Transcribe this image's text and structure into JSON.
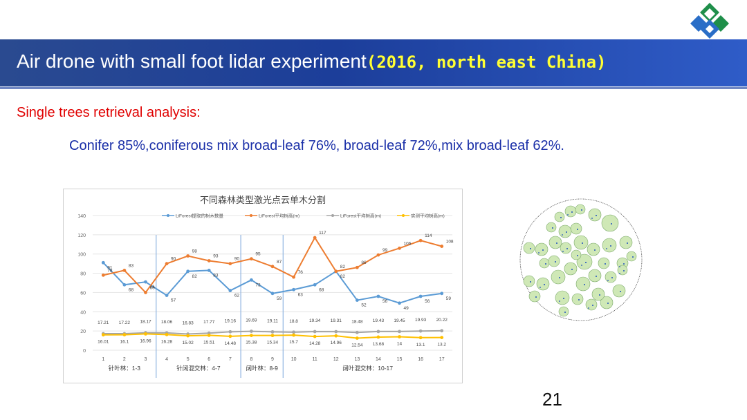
{
  "slide": {
    "title_main": "Air drone with small foot lidar experiment",
    "title_accent": "(2016, north east China)",
    "subheading": "Single trees retrieval analysis:",
    "detail": "Conifer  85%,coniferous mix broad-leaf 76%, broad-leaf 72%,mix broad-leaf 62%.",
    "page_number": "21"
  },
  "colors": {
    "title_bg": "#1c3e9a",
    "accent": "#ffff33",
    "subhead": "#e00000",
    "detail": "#1a2fa8"
  },
  "chart_data": {
    "type": "line",
    "title": "不同森林类型激光点云单木分割",
    "x": [
      1,
      2,
      3,
      4,
      5,
      6,
      7,
      8,
      9,
      10,
      11,
      12,
      13,
      14,
      15,
      16,
      17
    ],
    "ylim": [
      0,
      140
    ],
    "yticks": [
      0,
      20,
      40,
      60,
      80,
      100,
      120,
      140
    ],
    "series": [
      {
        "name": "LiForest提取的树木数量",
        "color": "#5b9bd5",
        "values": [
          91,
          68,
          71,
          57,
          82,
          83,
          62,
          73,
          59,
          63,
          68,
          82,
          52,
          56,
          49,
          56,
          59
        ]
      },
      {
        "name": "LiForest平均树高(m)",
        "color": "#ed7d31",
        "values": [
          78,
          83,
          60,
          90,
          98,
          93,
          90,
          95,
          87,
          76,
          117,
          82,
          86,
          99,
          106,
          114,
          108
        ]
      },
      {
        "name": "LiForest平均树高(m)",
        "color": "#a5a5a5",
        "values": [
          17.21,
          17.22,
          18.17,
          18.06,
          16.83,
          17.77,
          19.16,
          19.69,
          19.11,
          18.8,
          19.34,
          19.31,
          18.48,
          19.43,
          19.45,
          19.93,
          20.22
        ]
      },
      {
        "name": "实测平均树高(m)",
        "color": "#ffc000",
        "values": [
          16.01,
          16.1,
          16.96,
          16.28,
          15.02,
          15.51,
          14.48,
          15.38,
          15.34,
          15.7,
          14.28,
          14.96,
          12.54,
          13.68,
          14,
          13.1,
          13.2
        ]
      }
    ],
    "group_labels": [
      "针叶林：1-3",
      "针阔混交林：4-7",
      "阔叶林：8-9",
      "阔叶混交林：10-17"
    ],
    "group_dividers_after": [
      3,
      7,
      9
    ]
  }
}
